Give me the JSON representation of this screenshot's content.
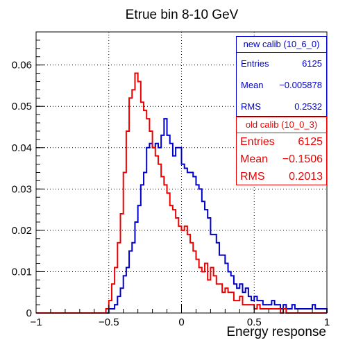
{
  "chart_data": {
    "type": "line",
    "title": "Etrue bin 8-10 GeV",
    "xlabel": "Energy response",
    "ylabel": "",
    "xlim": [
      -1,
      1
    ],
    "ylim": [
      0,
      0.068
    ],
    "grid": true,
    "x_ticks": [
      "−1",
      "−0.5",
      "0",
      "0.5",
      "1"
    ],
    "y_ticks": [
      "0",
      "0.01",
      "0.02",
      "0.03",
      "0.04",
      "0.05",
      "0.06"
    ],
    "y_tick_values": [
      0,
      0.01,
      0.02,
      0.03,
      0.04,
      0.05,
      0.06
    ],
    "x_tick_values": [
      -1,
      -0.5,
      0,
      0.5,
      1
    ],
    "bin_width": 0.02,
    "x_start": -1.0,
    "series": [
      {
        "name": "new calib (10_6_0)",
        "color": "#0000cc",
        "values": [
          0,
          0,
          0,
          0,
          0,
          0,
          0,
          0,
          0,
          0,
          0,
          0,
          0,
          0,
          0,
          0,
          0,
          0,
          0,
          0,
          0,
          0,
          0,
          0,
          0,
          0.001,
          0.001,
          0.002,
          0.004,
          0.006,
          0.009,
          0.011,
          0.015,
          0.017,
          0.022,
          0.026,
          0.031,
          0.034,
          0.04,
          0.041,
          0.04,
          0.041,
          0.04,
          0.043,
          0.047,
          0.043,
          0.041,
          0.038,
          0.04,
          0.04,
          0.036,
          0.035,
          0.034,
          0.034,
          0.033,
          0.031,
          0.03,
          0.027,
          0.025,
          0.023,
          0.019,
          0.019,
          0.017,
          0.014,
          0.014,
          0.012,
          0.01,
          0.009,
          0.007,
          0.006,
          0.007,
          0.005,
          0.006,
          0.004,
          0.003,
          0.004,
          0.003,
          0.003,
          0.002,
          0.002,
          0.002,
          0.003,
          0.002,
          0.002,
          0.001,
          0.002,
          0.001,
          0.001,
          0.002,
          0.001,
          0.001,
          0.001,
          0.001,
          0.001,
          0.001,
          0.002,
          0.001,
          0.001,
          0.001,
          0.001
        ]
      },
      {
        "name": "old calib (10_0_3)",
        "color": "#ee0000",
        "values": [
          0,
          0,
          0,
          0,
          0,
          0,
          0,
          0,
          0,
          0,
          0,
          0,
          0,
          0,
          0,
          0,
          0,
          0,
          0,
          0,
          0,
          0,
          0,
          0,
          0.001,
          0.003,
          0.007,
          0.011,
          0.017,
          0.024,
          0.034,
          0.044,
          0.052,
          0.054,
          0.058,
          0.056,
          0.051,
          0.049,
          0.047,
          0.044,
          0.04,
          0.038,
          0.036,
          0.033,
          0.031,
          0.029,
          0.026,
          0.025,
          0.023,
          0.021,
          0.02,
          0.021,
          0.019,
          0.017,
          0.015,
          0.013,
          0.011,
          0.01,
          0.012,
          0.008,
          0.011,
          0.009,
          0.007,
          0.007,
          0.005,
          0.006,
          0.005,
          0.005,
          0.003,
          0.003,
          0.004,
          0.002,
          0.002,
          0.002,
          0.002,
          0.001,
          0.002,
          0.001,
          0.001,
          0.001,
          0.001,
          0.001,
          0.001,
          0.001,
          0,
          0.001,
          0,
          0,
          0,
          0,
          0,
          0,
          0,
          0,
          0,
          0,
          0,
          0,
          0,
          0
        ]
      }
    ]
  },
  "stats_new": {
    "header": "new calib (10_6_0)",
    "entries_label": "Entries",
    "entries": "6125",
    "mean_label": "Mean",
    "mean": "−0.005878",
    "rms_label": "RMS",
    "rms": "0.2532"
  },
  "stats_old": {
    "header": "old calib (10_0_3)",
    "entries_label": "Entries",
    "entries": "6125",
    "mean_label": "Mean",
    "mean": "−0.1506",
    "rms_label": "RMS",
    "rms": "0.2013"
  }
}
